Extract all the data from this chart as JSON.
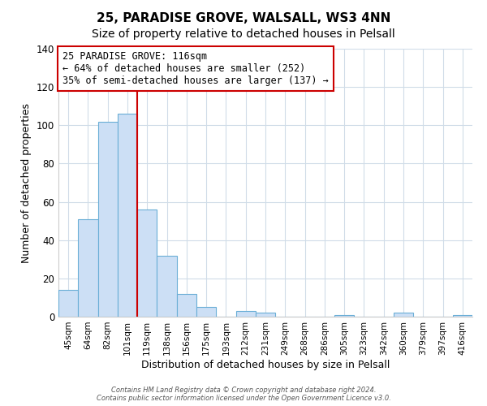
{
  "title": "25, PARADISE GROVE, WALSALL, WS3 4NN",
  "subtitle": "Size of property relative to detached houses in Pelsall",
  "xlabel": "Distribution of detached houses by size in Pelsall",
  "ylabel": "Number of detached properties",
  "bar_labels": [
    "45sqm",
    "64sqm",
    "82sqm",
    "101sqm",
    "119sqm",
    "138sqm",
    "156sqm",
    "175sqm",
    "193sqm",
    "212sqm",
    "231sqm",
    "249sqm",
    "268sqm",
    "286sqm",
    "305sqm",
    "323sqm",
    "342sqm",
    "360sqm",
    "379sqm",
    "397sqm",
    "416sqm"
  ],
  "bar_heights": [
    14,
    51,
    102,
    106,
    56,
    32,
    12,
    5,
    0,
    3,
    2,
    0,
    0,
    0,
    1,
    0,
    0,
    2,
    0,
    0,
    1
  ],
  "bar_color": "#ccdff5",
  "bar_edge_color": "#6aaed6",
  "vline_color": "#cc0000",
  "annotation_text": "25 PARADISE GROVE: 116sqm\n← 64% of detached houses are smaller (252)\n35% of semi-detached houses are larger (137) →",
  "annotation_box_color": "#ffffff",
  "annotation_box_edge_color": "#cc0000",
  "ylim": [
    0,
    140
  ],
  "yticks": [
    0,
    20,
    40,
    60,
    80,
    100,
    120,
    140
  ],
  "footer1": "Contains HM Land Registry data © Crown copyright and database right 2024.",
  "footer2": "Contains public sector information licensed under the Open Government Licence v3.0.",
  "bg_color": "#ffffff",
  "grid_color": "#d0dce8",
  "title_fontsize": 11,
  "subtitle_fontsize": 10
}
